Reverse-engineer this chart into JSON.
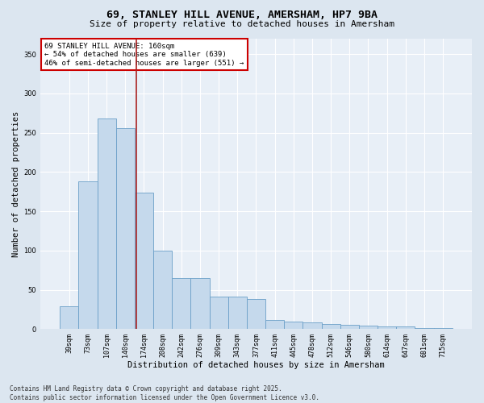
{
  "title": "69, STANLEY HILL AVENUE, AMERSHAM, HP7 9BA",
  "subtitle": "Size of property relative to detached houses in Amersham",
  "xlabel": "Distribution of detached houses by size in Amersham",
  "ylabel": "Number of detached properties",
  "categories": [
    "39sqm",
    "73sqm",
    "107sqm",
    "140sqm",
    "174sqm",
    "208sqm",
    "242sqm",
    "276sqm",
    "309sqm",
    "343sqm",
    "377sqm",
    "411sqm",
    "445sqm",
    "478sqm",
    "512sqm",
    "546sqm",
    "580sqm",
    "614sqm",
    "647sqm",
    "681sqm",
    "715sqm"
  ],
  "values": [
    29,
    188,
    268,
    256,
    174,
    100,
    65,
    65,
    41,
    41,
    38,
    12,
    10,
    9,
    7,
    6,
    5,
    4,
    4,
    2,
    2
  ],
  "bar_color": "#c5d9ec",
  "bar_edge_color": "#6b9fc8",
  "vline_x": 3.57,
  "vline_color": "#aa2222",
  "annotation_text": "69 STANLEY HILL AVENUE: 160sqm\n← 54% of detached houses are smaller (639)\n46% of semi-detached houses are larger (551) →",
  "annotation_box_color": "#ffffff",
  "annotation_box_edge_color": "#cc0000",
  "ylim": [
    0,
    370
  ],
  "yticks": [
    0,
    50,
    100,
    150,
    200,
    250,
    300,
    350
  ],
  "background_color": "#dce6f0",
  "plot_background_color": "#e8eff7",
  "grid_color": "#ffffff",
  "footer_line1": "Contains HM Land Registry data © Crown copyright and database right 2025.",
  "footer_line2": "Contains public sector information licensed under the Open Government Licence v3.0.",
  "title_fontsize": 9.5,
  "subtitle_fontsize": 8,
  "xlabel_fontsize": 7.5,
  "ylabel_fontsize": 7.5,
  "tick_fontsize": 6,
  "footer_fontsize": 5.5,
  "annotation_fontsize": 6.5
}
